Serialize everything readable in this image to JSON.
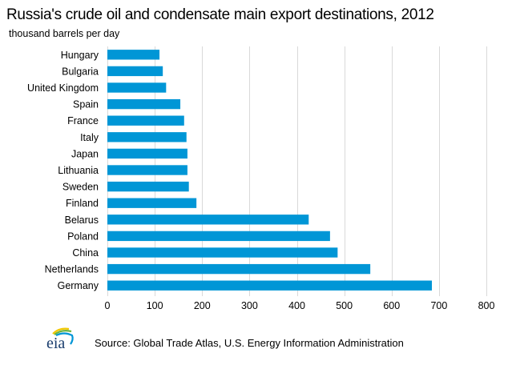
{
  "chart_data": {
    "type": "bar",
    "orientation": "horizontal",
    "title": "Russia's crude oil and condensate main export destinations, 2012",
    "subtitle": "thousand barrels per day",
    "xlabel": "",
    "ylabel": "thousand barrels per day",
    "categories": [
      "Hungary",
      "Bulgaria",
      "United Kingdom",
      "Spain",
      "France",
      "Italy",
      "Japan",
      "Lithuania",
      "Sweden",
      "Finland",
      "Belarus",
      "Poland",
      "China",
      "Netherlands",
      "Germany"
    ],
    "values": [
      110,
      117,
      124,
      154,
      162,
      167,
      169,
      169,
      172,
      188,
      425,
      470,
      486,
      555,
      685
    ],
    "xlim": [
      0,
      800
    ],
    "xticks": [
      "0",
      "100",
      "200",
      "300",
      "400",
      "500",
      "600",
      "700",
      "800"
    ],
    "grid": "vertical",
    "bar_color": "#0096d6",
    "grid_color": "#d9d9d9"
  },
  "footer": {
    "logo_text": "eia",
    "source": "Source: Global Trade Atlas, U.S. Energy Information Administration"
  }
}
